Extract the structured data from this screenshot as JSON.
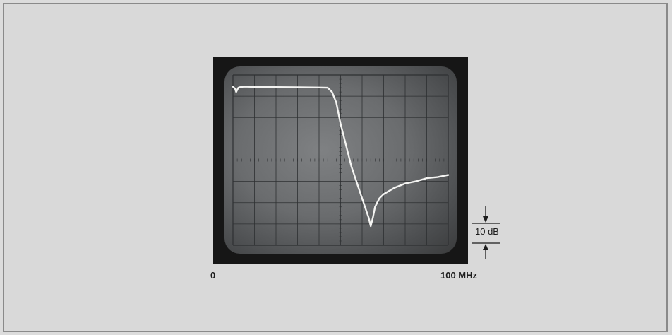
{
  "chart_data": {
    "type": "line",
    "title": "",
    "xlabel": "",
    "ylabel": "",
    "x_tick_labels": [
      "0",
      "100 MHz"
    ],
    "xlim": [
      0,
      100
    ],
    "ylim": [
      -75,
      5
    ],
    "grid": true,
    "series": [
      {
        "x": [
          0,
          1,
          1.5,
          2.5,
          3,
          5,
          10,
          20,
          30,
          40,
          44,
          46,
          48,
          50,
          55,
          60,
          63,
          64,
          65,
          66,
          68,
          70,
          75,
          80,
          85,
          90,
          95,
          100
        ],
        "values": [
          -0.5,
          -1.5,
          -3,
          -1,
          -0.8,
          -0.5,
          -0.6,
          -0.7,
          -0.8,
          -0.9,
          -1,
          -3,
          -8,
          -18,
          -38,
          -53,
          -62,
          -66,
          -62,
          -57,
          -53,
          -51,
          -48,
          -46,
          -45,
          -43.5,
          -43,
          -42
        ]
      }
    ],
    "scale_marker": {
      "label": "10 dB",
      "value": 10
    }
  },
  "colors": {
    "trace": "#f4f4f2",
    "grid": "#2e3032",
    "bezel": "#161616",
    "background": "#d9d9d9"
  }
}
